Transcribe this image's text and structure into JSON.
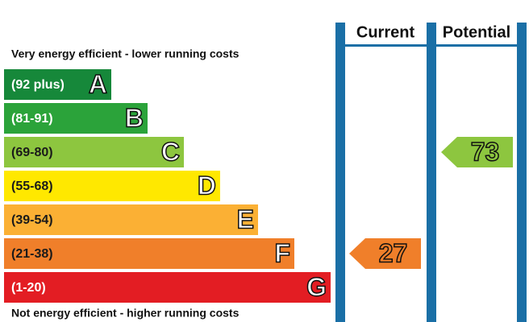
{
  "header": {
    "top_note": "Very energy efficient - lower running costs",
    "bottom_note": "Not energy efficient - higher running costs",
    "current_label": "Current",
    "potential_label": "Potential"
  },
  "bands": [
    {
      "range": "(92 plus)",
      "letter": "A",
      "color": "#16883a",
      "text_color": "#ffffff"
    },
    {
      "range": "(81-91)",
      "letter": "B",
      "color": "#2ba33a",
      "text_color": "#ffffff"
    },
    {
      "range": "(69-80)",
      "letter": "C",
      "color": "#8dc63f",
      "text_color": "#1a1a1a"
    },
    {
      "range": "(55-68)",
      "letter": "D",
      "color": "#ffe800",
      "text_color": "#1a1a1a"
    },
    {
      "range": "(39-54)",
      "letter": "E",
      "color": "#fbb034",
      "text_color": "#1a1a1a"
    },
    {
      "range": "(21-38)",
      "letter": "F",
      "color": "#f07f2a",
      "text_color": "#1a1a1a"
    },
    {
      "range": "(1-20)",
      "letter": "G",
      "color": "#e31d23",
      "text_color": "#ffffff"
    }
  ],
  "current": 27,
  "potential": 73
}
